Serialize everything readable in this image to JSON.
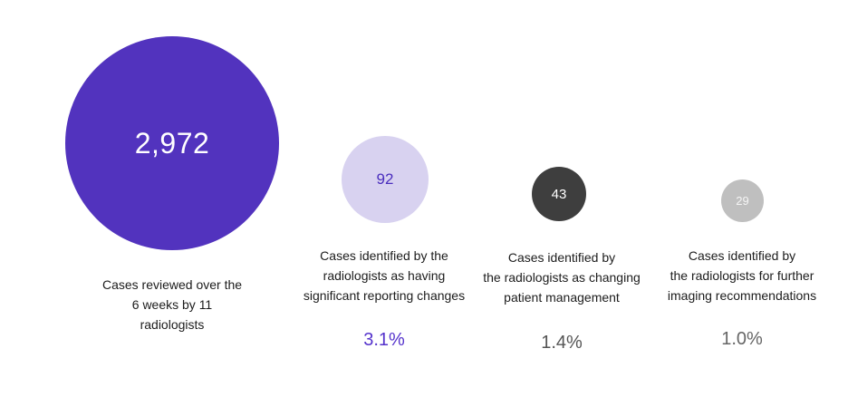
{
  "chart_data": {
    "type": "bubble",
    "title": "",
    "categories": [
      "Cases reviewed over the 6 weeks by 11 radiologists",
      "Cases identified by the radiologists as having significant reporting changes",
      "Cases identified by the radiologists as changing patient management",
      "Cases identified by the radiologists for further imaging recommendations"
    ],
    "values": [
      2972,
      92,
      43,
      29
    ],
    "percent_of_total": [
      null,
      3.1,
      1.4,
      1.0
    ],
    "colors": [
      "#5233BE",
      "#D8D2F0",
      "#3E3E3E",
      "#BFBFBF"
    ],
    "layout": "four proportional circles left to right, sized by value, caption below each, percentage label below captions 2-4"
  },
  "bubbles": [
    {
      "value_label": "2,972",
      "caption": "Cases reviewed over the\n6 weeks by 11\nradiologists",
      "fill": "#5233BE",
      "number_color": "#FFFFFF",
      "percent_label": "",
      "percent_color": ""
    },
    {
      "value_label": "92",
      "caption": "Cases identified by the\nradiologists as having\nsignificant reporting changes",
      "fill": "#D8D2F0",
      "number_color": "#4A2EBE",
      "percent_label": "3.1%",
      "percent_color": "#5533CC"
    },
    {
      "value_label": "43",
      "caption": "Cases identified by\nthe radiologists as changing\npatient management",
      "fill": "#3E3E3E",
      "number_color": "#FFFFFF",
      "percent_label": "1.4%",
      "percent_color": "#555555"
    },
    {
      "value_label": "29",
      "caption": "Cases identified by\nthe radiologists for further\nimaging recommendations",
      "fill": "#BFBFBF",
      "number_color": "#F5F5F5",
      "percent_label": "1.0%",
      "percent_color": "#666666"
    }
  ]
}
